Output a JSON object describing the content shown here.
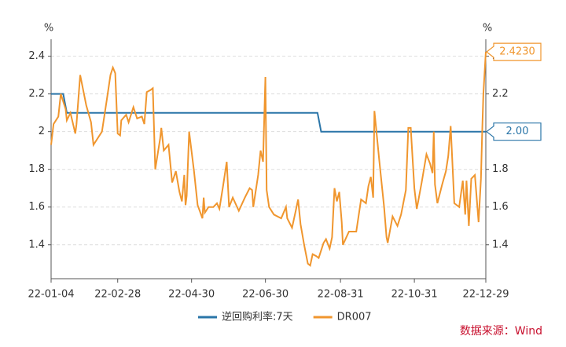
{
  "chart_data": {
    "type": "line",
    "y_unit": "%",
    "y2_unit": "%",
    "source": "数据来源：Wind",
    "ylim": [
      1.22,
      2.49
    ],
    "yticks": [
      1.4,
      1.6,
      1.8,
      2,
      2.2,
      2.4
    ],
    "y2lim": [
      1.22,
      2.49
    ],
    "y2ticks": [
      1.4,
      1.6,
      1.8,
      2,
      2.2,
      2.4
    ],
    "xlim": [
      "22-01-04",
      "22-12-29"
    ],
    "xticks": [
      "22-01-04",
      "22-02-28",
      "22-04-30",
      "22-06-30",
      "22-08-31",
      "22-10-31",
      "22-12-29"
    ],
    "grid": true,
    "legend": "bottom",
    "series": [
      {
        "name": "逆回购利率:7天",
        "color": "#2a75a8",
        "x": [
          "22-01-04",
          "22-01-14",
          "22-01-17",
          "22-08-12",
          "22-08-15",
          "22-12-29"
        ],
        "values": [
          2.2,
          2.2,
          2.1,
          2.1,
          2.0,
          2.0
        ],
        "value_labels": [
          null,
          null,
          null,
          null,
          null,
          "2.00"
        ]
      },
      {
        "name": "DR007",
        "color": "#f0962e",
        "x": [
          "22-01-04",
          "22-01-06",
          "22-01-10",
          "22-01-12",
          "22-01-16",
          "22-01-17",
          "22-01-20",
          "22-01-24",
          "22-01-25",
          "22-01-28",
          "22-02-02",
          "22-02-06",
          "22-02-08",
          "22-02-11",
          "22-02-15",
          "22-02-19",
          "22-02-22",
          "22-02-24",
          "22-02-26",
          "22-02-28",
          "22-03-02",
          "22-03-03",
          "22-03-07",
          "22-03-09",
          "22-03-13",
          "22-03-16",
          "22-03-20",
          "22-03-22",
          "22-03-24",
          "22-03-27",
          "22-03-29",
          "22-03-31",
          "22-04-04",
          "22-04-05",
          "22-04-07",
          "22-04-11",
          "22-04-14",
          "22-04-17",
          "22-04-20",
          "22-04-22",
          "22-04-24",
          "22-04-25",
          "22-04-26",
          "22-04-28",
          "22-05-02",
          "22-05-05",
          "22-05-09",
          "22-05-10",
          "22-05-11",
          "22-05-14",
          "22-05-18",
          "22-05-21",
          "22-05-23",
          "22-05-26",
          "22-05-29",
          "22-05-31",
          "22-06-03",
          "22-06-08",
          "22-06-13",
          "22-06-17",
          "22-06-19",
          "22-06-20",
          "22-06-24",
          "22-06-26",
          "22-06-28",
          "22-06-30",
          "22-07-01",
          "22-07-03",
          "22-07-07",
          "22-07-13",
          "22-07-17",
          "22-07-18",
          "22-07-22",
          "22-07-25",
          "22-07-27",
          "22-07-29",
          "22-08-01",
          "22-08-04",
          "22-08-06",
          "22-08-08",
          "22-08-11",
          "22-08-13",
          "22-08-17",
          "22-08-19",
          "22-08-22",
          "22-08-24",
          "22-08-26",
          "22-08-28",
          "22-08-30",
          "22-09-01",
          "22-09-02",
          "22-09-07",
          "22-09-13",
          "22-09-17",
          "22-09-21",
          "22-09-23",
          "22-09-25",
          "22-09-27",
          "22-09-28",
          "22-10-02",
          "22-10-06",
          "22-10-08",
          "22-10-09",
          "22-10-13",
          "22-10-17",
          "22-10-20",
          "22-10-24",
          "22-10-26",
          "22-10-28",
          "22-10-31",
          "22-11-02",
          "22-11-06",
          "22-11-10",
          "22-11-13",
          "22-11-15",
          "22-11-16",
          "22-11-17",
          "22-11-19",
          "22-11-23",
          "22-11-26",
          "22-11-28",
          "22-11-30",
          "22-12-03",
          "22-12-07",
          "22-12-10",
          "22-12-12",
          "22-12-13",
          "22-12-15",
          "22-12-17",
          "22-12-20",
          "22-12-23",
          "22-12-25",
          "22-12-26",
          "22-12-27",
          "22-12-29"
        ],
        "values": [
          1.93,
          2.04,
          2.08,
          2.2,
          2.12,
          2.06,
          2.1,
          1.99,
          2.04,
          2.3,
          2.14,
          2.05,
          1.93,
          1.96,
          2.0,
          2.17,
          2.3,
          2.34,
          2.31,
          1.99,
          1.98,
          2.06,
          2.09,
          2.05,
          2.13,
          2.07,
          2.08,
          2.04,
          2.21,
          2.22,
          2.23,
          1.8,
          1.96,
          2.02,
          1.9,
          1.93,
          1.73,
          1.79,
          1.68,
          1.63,
          1.77,
          1.61,
          1.66,
          2.0,
          1.79,
          1.61,
          1.54,
          1.65,
          1.57,
          1.6,
          1.6,
          1.62,
          1.59,
          1.71,
          1.84,
          1.6,
          1.65,
          1.58,
          1.65,
          1.7,
          1.69,
          1.6,
          1.77,
          1.9,
          1.84,
          2.29,
          1.69,
          1.6,
          1.56,
          1.54,
          1.6,
          1.54,
          1.49,
          1.58,
          1.64,
          1.51,
          1.4,
          1.3,
          1.29,
          1.35,
          1.34,
          1.33,
          1.41,
          1.43,
          1.38,
          1.44,
          1.7,
          1.63,
          1.68,
          1.52,
          1.4,
          1.47,
          1.47,
          1.64,
          1.62,
          1.71,
          1.76,
          1.65,
          2.11,
          1.85,
          1.6,
          1.44,
          1.41,
          1.55,
          1.5,
          1.56,
          1.69,
          2.02,
          2.02,
          1.7,
          1.59,
          1.73,
          1.88,
          1.83,
          1.78,
          2.0,
          1.72,
          1.62,
          1.72,
          1.79,
          1.87,
          2.03,
          1.62,
          1.6,
          1.74,
          1.56,
          1.74,
          1.5,
          1.75,
          1.77,
          1.52,
          1.75,
          2.0,
          2.2,
          2.423
        ],
        "value_labels": [
          null,
          null,
          null,
          null,
          null,
          null,
          null,
          null,
          null,
          null,
          null,
          null,
          null,
          null,
          null,
          null,
          null,
          null,
          null,
          null,
          null,
          null,
          null,
          null,
          null,
          null,
          null,
          null,
          null,
          null,
          null,
          null,
          null,
          null,
          null,
          null,
          null,
          null,
          null,
          null,
          null,
          null,
          null,
          null,
          null,
          null,
          null,
          null,
          null,
          null,
          null,
          null,
          null,
          null,
          null,
          null,
          null,
          null,
          null,
          null,
          null,
          null,
          null,
          null,
          null,
          null,
          null,
          null,
          null,
          null,
          null,
          null,
          null,
          null,
          null,
          null,
          null,
          null,
          null,
          null,
          null,
          null,
          null,
          null,
          null,
          null,
          null,
          null,
          null,
          null,
          null,
          null,
          null,
          null,
          null,
          null,
          null,
          null,
          null,
          null,
          null,
          null,
          null,
          null,
          null,
          null,
          null,
          null,
          null,
          null,
          null,
          null,
          null,
          null,
          null,
          null,
          null,
          null,
          null,
          null,
          null,
          null,
          null,
          null,
          null,
          null,
          null,
          null,
          null,
          null,
          null,
          null,
          null,
          null,
          "2.4230"
        ]
      }
    ]
  }
}
